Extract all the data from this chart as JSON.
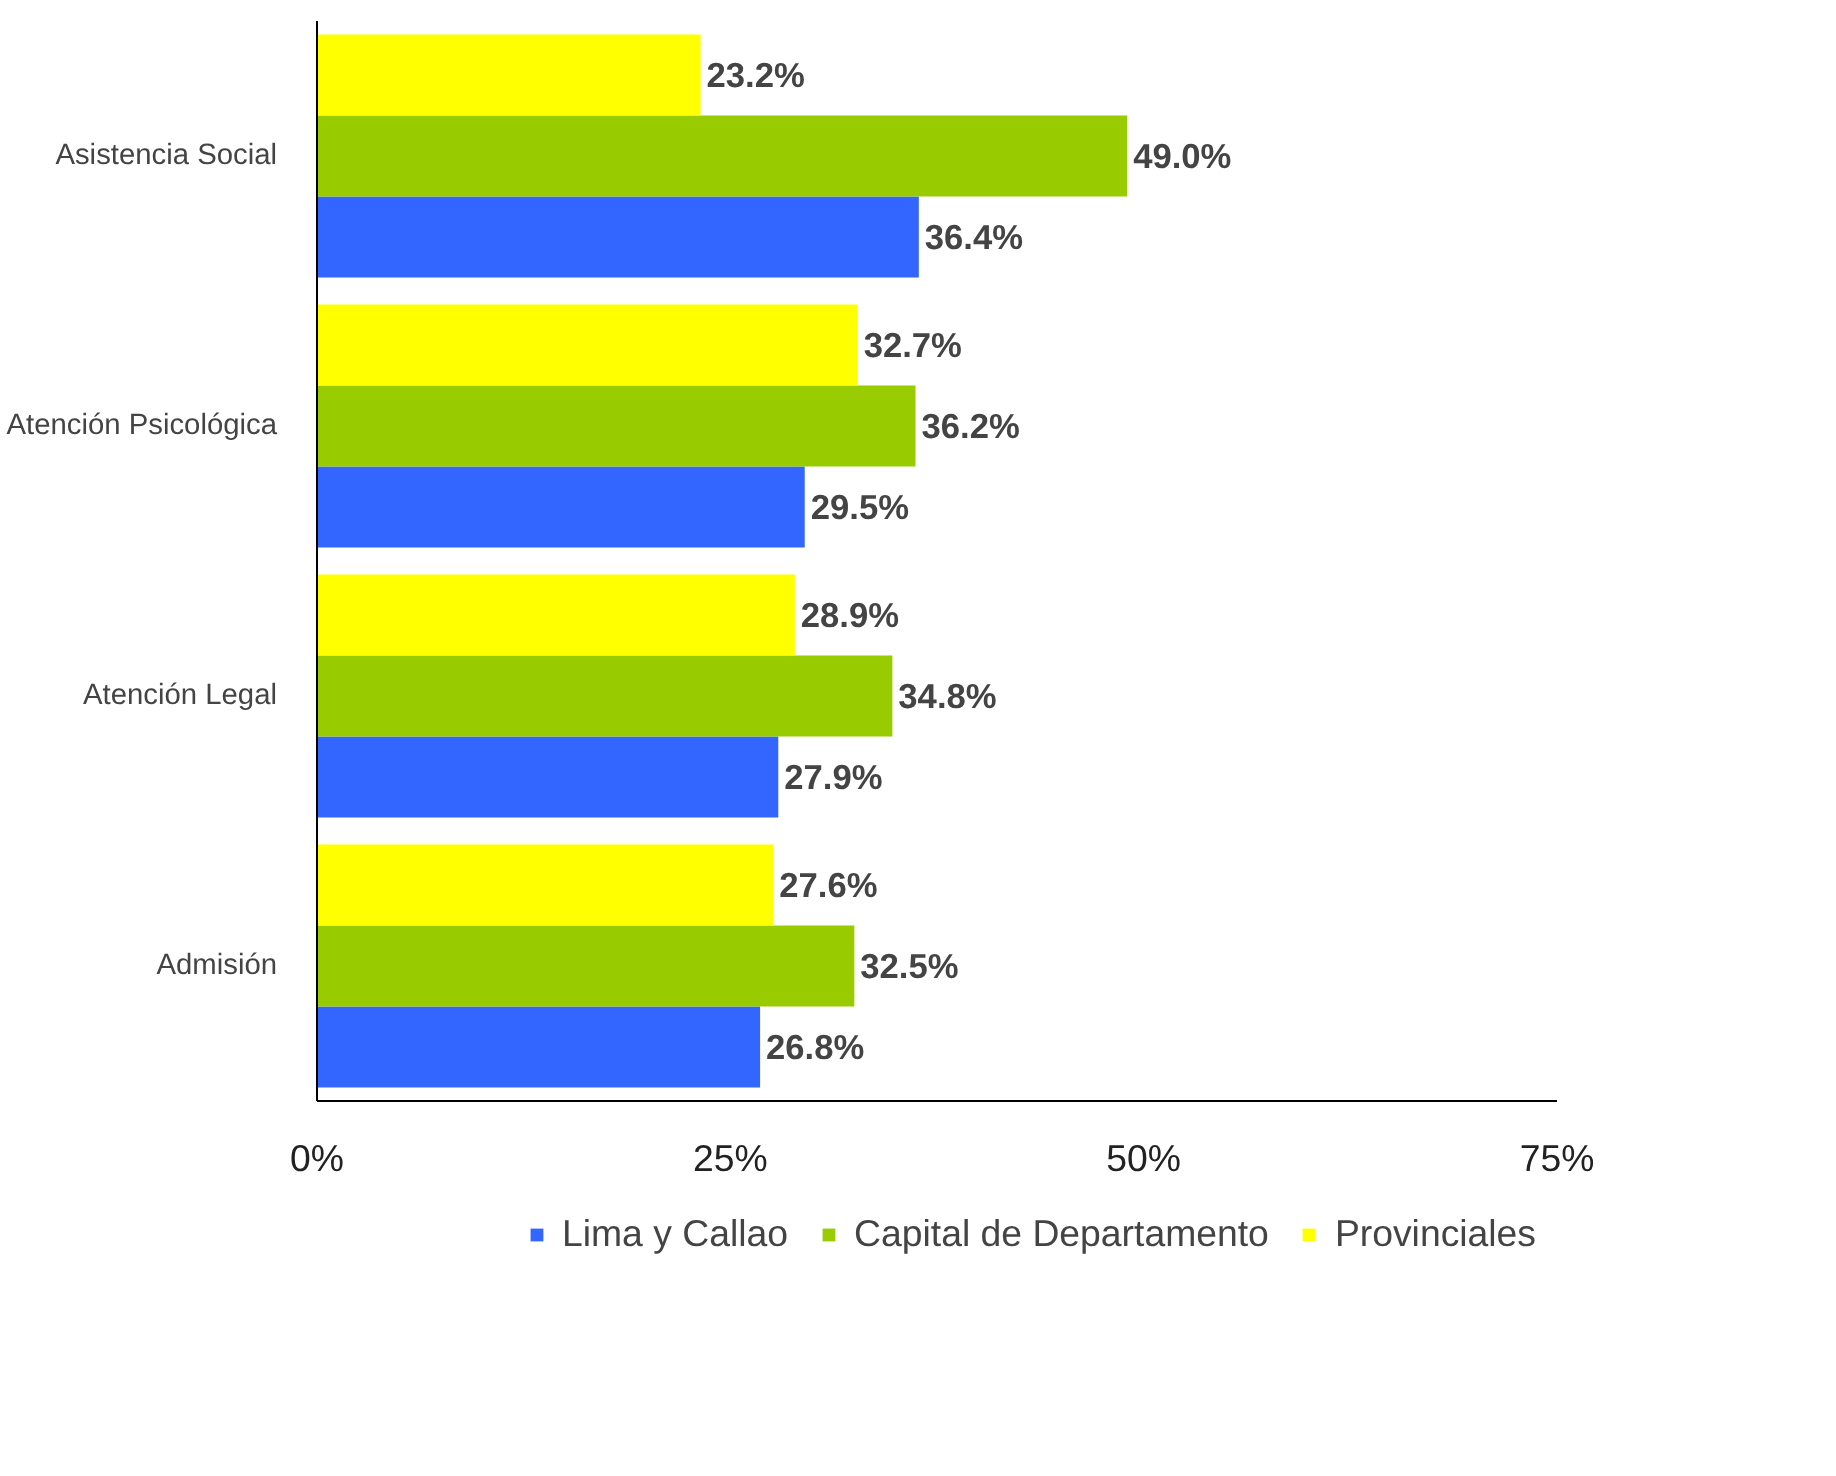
{
  "chart_data": {
    "type": "bar",
    "orientation": "horizontal",
    "categories": [
      "Asistencia Social",
      "Atención Psicológica",
      "Atención Legal",
      "Admisión"
    ],
    "series": [
      {
        "name": "Lima y Callao",
        "color": "#3366ff",
        "values": [
          36.4,
          29.5,
          27.9,
          26.8
        ],
        "value_labels": [
          "36.4%",
          "29.5%",
          "27.9%",
          "26.8%"
        ]
      },
      {
        "name": "Capital de Departamento",
        "color": "#99cc00",
        "values": [
          49.0,
          36.2,
          34.8,
          32.5
        ],
        "value_labels": [
          "49.0%",
          "36.2%",
          "34.8%",
          "32.5%"
        ]
      },
      {
        "name": "Provinciales",
        "color": "#ffff00",
        "values": [
          23.2,
          32.7,
          28.9,
          27.6
        ],
        "value_labels": [
          "23.2%",
          "32.7%",
          "28.9%",
          "27.6%"
        ]
      }
    ],
    "xlim": [
      0,
      75
    ],
    "xticks": [
      {
        "value": 0,
        "label": "0%"
      },
      {
        "value": 25,
        "label": "25%"
      },
      {
        "value": 50,
        "label": "50%"
      },
      {
        "value": 75,
        "label": "75%"
      }
    ],
    "grid": false,
    "legend": "bottom"
  }
}
